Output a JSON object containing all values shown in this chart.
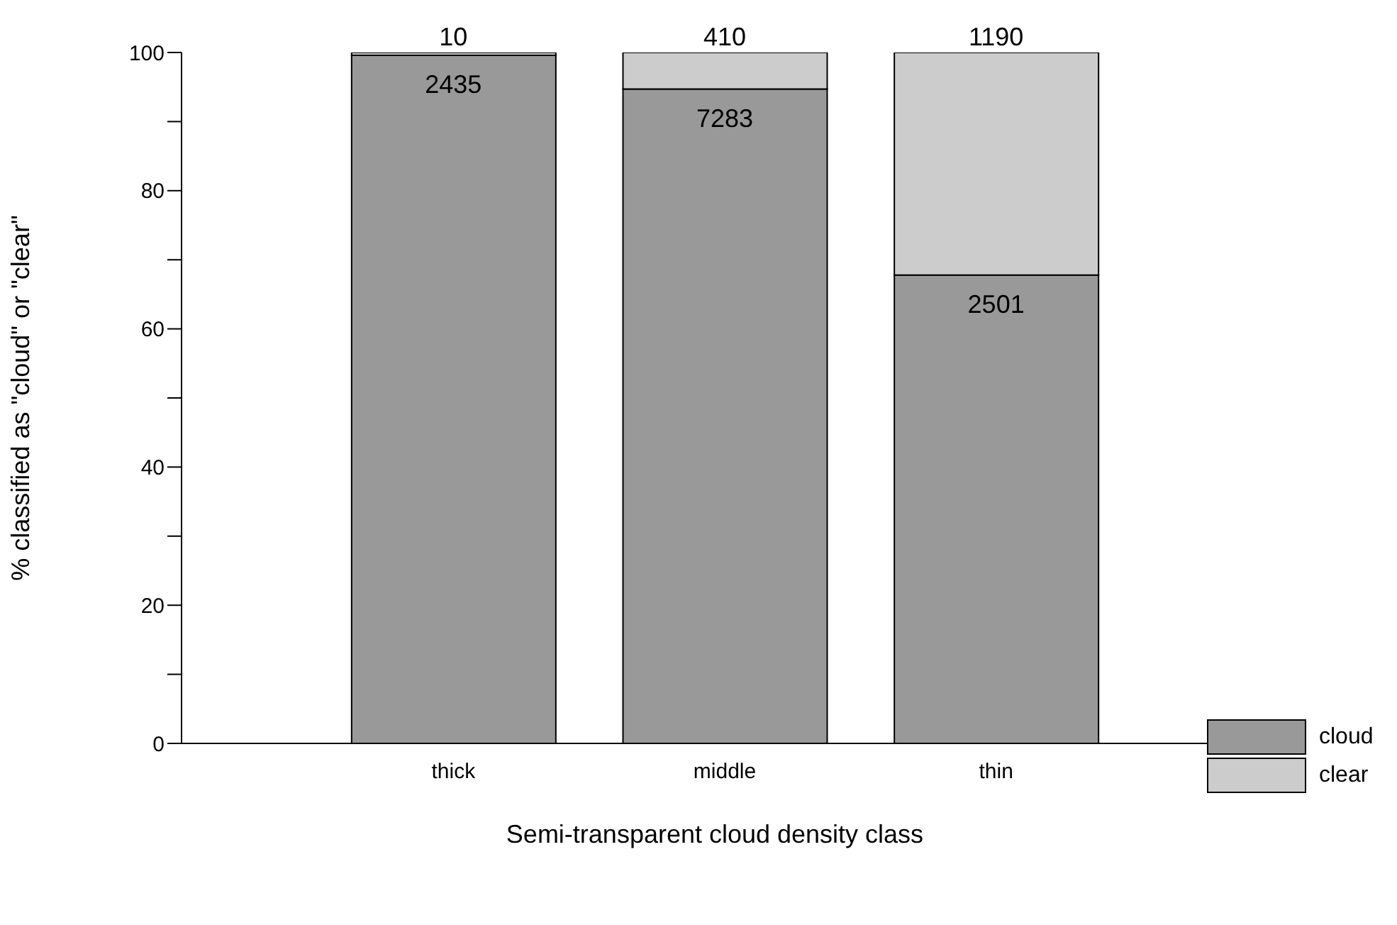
{
  "chart_data": {
    "type": "bar",
    "stacked": true,
    "xlabel": "Semi-transparent cloud density class",
    "ylabel": "% classified as \"cloud\" or \"clear\"",
    "categories": [
      "thick",
      "middle",
      "thin"
    ],
    "series": [
      {
        "name": "cloud",
        "color": "#999999",
        "values": [
          99.6,
          94.7,
          67.8
        ]
      },
      {
        "name": "clear",
        "color": "#cccccc",
        "values": [
          0.4,
          5.3,
          32.2
        ]
      }
    ],
    "annotations": [
      {
        "text": "2435",
        "x": "thick",
        "y": 99.6
      },
      {
        "text": "7283",
        "x": "middle",
        "y": 94.7
      },
      {
        "text": "2501",
        "x": "thin",
        "y": 67.8
      },
      {
        "text": "10",
        "x": "thick",
        "y": 100
      },
      {
        "text": "410",
        "x": "middle",
        "y": 100
      },
      {
        "text": "1190",
        "x": "thin",
        "y": 100
      }
    ],
    "ylim": [
      0,
      100
    ],
    "yticks": [
      0,
      {
        "value": 10,
        "label": null
      },
      20,
      {
        "value": 30,
        "label": null
      },
      40,
      {
        "value": 50,
        "label": null
      },
      60,
      {
        "value": 70,
        "label": null
      },
      80,
      {
        "value": 90,
        "label": null
      },
      100
    ],
    "grid": false,
    "legend": "bottom right"
  }
}
